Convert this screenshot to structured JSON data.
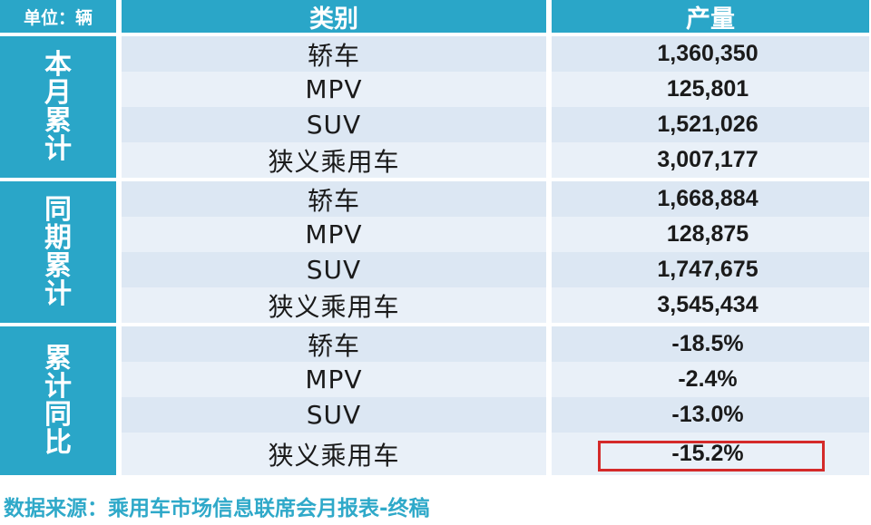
{
  "header": {
    "unit": "单位：辆",
    "category": "类别",
    "output": "产量"
  },
  "groups": [
    {
      "label": [
        "本",
        "月",
        "累",
        "计"
      ],
      "rows": [
        {
          "category": "轿车",
          "value": "1,360,350"
        },
        {
          "category": "MPV",
          "value": "125,801"
        },
        {
          "category": "SUV",
          "value": "1,521,026"
        },
        {
          "category": "狭义乘用车",
          "value": "3,007,177"
        }
      ]
    },
    {
      "label": [
        "同",
        "期",
        "累",
        "计"
      ],
      "rows": [
        {
          "category": "轿车",
          "value": "1,668,884"
        },
        {
          "category": "MPV",
          "value": "128,875"
        },
        {
          "category": "SUV",
          "value": "1,747,675"
        },
        {
          "category": "狭义乘用车",
          "value": "3,545,434"
        }
      ]
    },
    {
      "label": [
        "累",
        "计",
        "同",
        "比"
      ],
      "rows": [
        {
          "category": "轿车",
          "value": "-18.5%"
        },
        {
          "category": "MPV",
          "value": "-2.4%"
        },
        {
          "category": "SUV",
          "value": "-13.0%"
        },
        {
          "category": "狭义乘用车",
          "value": "-15.2%"
        }
      ]
    }
  ],
  "source": "数据来源：乘用车市场信息联席会月报表-终稿",
  "colors": {
    "header": "#2aa6c8",
    "highlight": "#d42a2a",
    "source": "#2fa9c9"
  }
}
